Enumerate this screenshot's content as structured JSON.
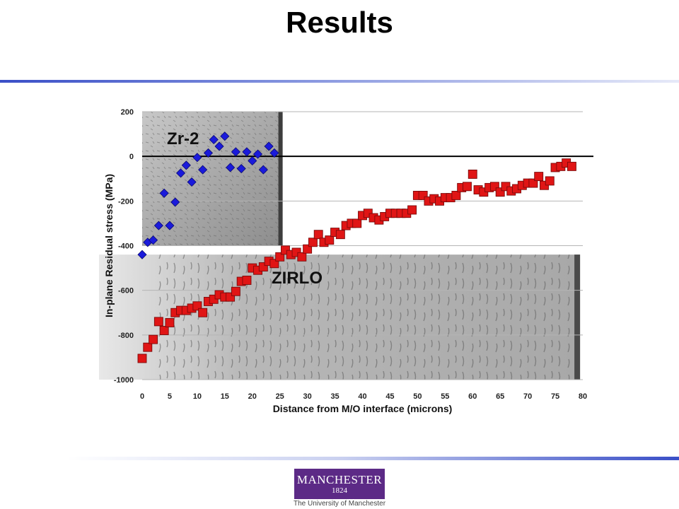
{
  "slide": {
    "title": "Results"
  },
  "logo": {
    "name": "MANCHESTER",
    "year": "1824",
    "subtitle": "The University of Manchester"
  },
  "chart_data": {
    "type": "scatter",
    "xlabel": "Distance from M/O interface (microns)",
    "ylabel": "In-plane Residual stress (MPa)",
    "xlim": [
      0,
      80
    ],
    "ylim": [
      -1000,
      200
    ],
    "x_ticks": [
      0,
      5,
      10,
      15,
      20,
      25,
      30,
      35,
      40,
      45,
      50,
      55,
      60,
      65,
      70,
      75,
      80
    ],
    "y_ticks": [
      200,
      0,
      -200,
      -400,
      -600,
      -800,
      -1000
    ],
    "grid": "horizontal",
    "background_images": [
      "Zr-2 micrograph (top-left)",
      "ZIRLO micrograph (bottom)"
    ],
    "series": [
      {
        "name": "Zr-2",
        "color": "#1a1adb",
        "marker": "diamond",
        "points": [
          [
            0,
            -440
          ],
          [
            1,
            -385
          ],
          [
            2,
            -375
          ],
          [
            3,
            -310
          ],
          [
            4,
            -165
          ],
          [
            5,
            -310
          ],
          [
            6,
            -205
          ],
          [
            7,
            -75
          ],
          [
            8,
            -40
          ],
          [
            9,
            -115
          ],
          [
            10,
            -5
          ],
          [
            11,
            -60
          ],
          [
            12,
            15
          ],
          [
            13,
            75
          ],
          [
            14,
            45
          ],
          [
            15,
            90
          ],
          [
            16,
            -50
          ],
          [
            17,
            20
          ],
          [
            18,
            -55
          ],
          [
            19,
            20
          ],
          [
            20,
            -20
          ],
          [
            21,
            10
          ],
          [
            22,
            -60
          ],
          [
            23,
            45
          ],
          [
            24,
            15
          ]
        ]
      },
      {
        "name": "ZIRLO",
        "color": "#e01515",
        "marker": "square",
        "points": [
          [
            0,
            -905
          ],
          [
            1,
            -855
          ],
          [
            2,
            -820
          ],
          [
            3,
            -740
          ],
          [
            4,
            -780
          ],
          [
            5,
            -745
          ],
          [
            6,
            -700
          ],
          [
            7,
            -690
          ],
          [
            8,
            -690
          ],
          [
            9,
            -680
          ],
          [
            10,
            -670
          ],
          [
            11,
            -700
          ],
          [
            12,
            -650
          ],
          [
            13,
            -640
          ],
          [
            14,
            -620
          ],
          [
            15,
            -630
          ],
          [
            16,
            -630
          ],
          [
            17,
            -605
          ],
          [
            18,
            -560
          ],
          [
            19,
            -555
          ],
          [
            20,
            -500
          ],
          [
            21,
            -510
          ],
          [
            22,
            -495
          ],
          [
            23,
            -470
          ],
          [
            24,
            -480
          ],
          [
            25,
            -450
          ],
          [
            26,
            -420
          ],
          [
            27,
            -440
          ],
          [
            28,
            -430
          ],
          [
            29,
            -450
          ],
          [
            30,
            -415
          ],
          [
            31,
            -385
          ],
          [
            32,
            -350
          ],
          [
            33,
            -385
          ],
          [
            34,
            -375
          ],
          [
            35,
            -340
          ],
          [
            36,
            -350
          ],
          [
            37,
            -310
          ],
          [
            38,
            -300
          ],
          [
            39,
            -300
          ],
          [
            40,
            -265
          ],
          [
            41,
            -255
          ],
          [
            42,
            -275
          ],
          [
            43,
            -285
          ],
          [
            44,
            -270
          ],
          [
            45,
            -255
          ],
          [
            46,
            -255
          ],
          [
            47,
            -255
          ],
          [
            48,
            -255
          ],
          [
            49,
            -240
          ],
          [
            50,
            -175
          ],
          [
            51,
            -175
          ],
          [
            52,
            -200
          ],
          [
            53,
            -190
          ],
          [
            54,
            -200
          ],
          [
            55,
            -185
          ],
          [
            56,
            -185
          ],
          [
            57,
            -175
          ],
          [
            58,
            -140
          ],
          [
            59,
            -135
          ],
          [
            60,
            -80
          ],
          [
            61,
            -150
          ],
          [
            62,
            -160
          ],
          [
            63,
            -140
          ],
          [
            64,
            -135
          ],
          [
            65,
            -160
          ],
          [
            66,
            -135
          ],
          [
            67,
            -155
          ],
          [
            68,
            -145
          ],
          [
            69,
            -130
          ],
          [
            70,
            -120
          ],
          [
            71,
            -120
          ],
          [
            72,
            -90
          ],
          [
            73,
            -130
          ],
          [
            74,
            -110
          ],
          [
            75,
            -50
          ],
          [
            76,
            -45
          ],
          [
            77,
            -30
          ],
          [
            78,
            -45
          ]
        ]
      }
    ]
  }
}
